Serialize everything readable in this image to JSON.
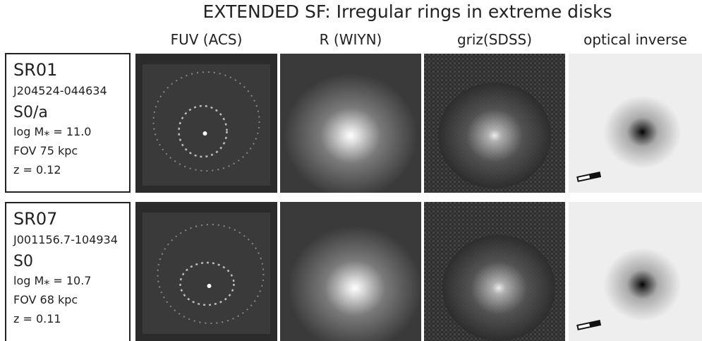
{
  "title": "EXTENDED SF: Irregular rings in extreme disks",
  "columns": [
    "FUV (ACS)",
    "R (WIYN)",
    "griz(SDSS)",
    "optical inverse"
  ],
  "rows": [
    {
      "name": "SR01",
      "id": "J204524-044634",
      "morph": "S0/a",
      "mass": "log M⁎ = 11.0",
      "fov": "FOV 75 kpc",
      "z": "z = 0.12"
    },
    {
      "name": "SR07",
      "id": "J001156.7-104934",
      "morph": "S0",
      "mass": "log M⁎ = 10.7",
      "fov": "FOV 68 kpc",
      "z": "z = 0.11"
    }
  ]
}
